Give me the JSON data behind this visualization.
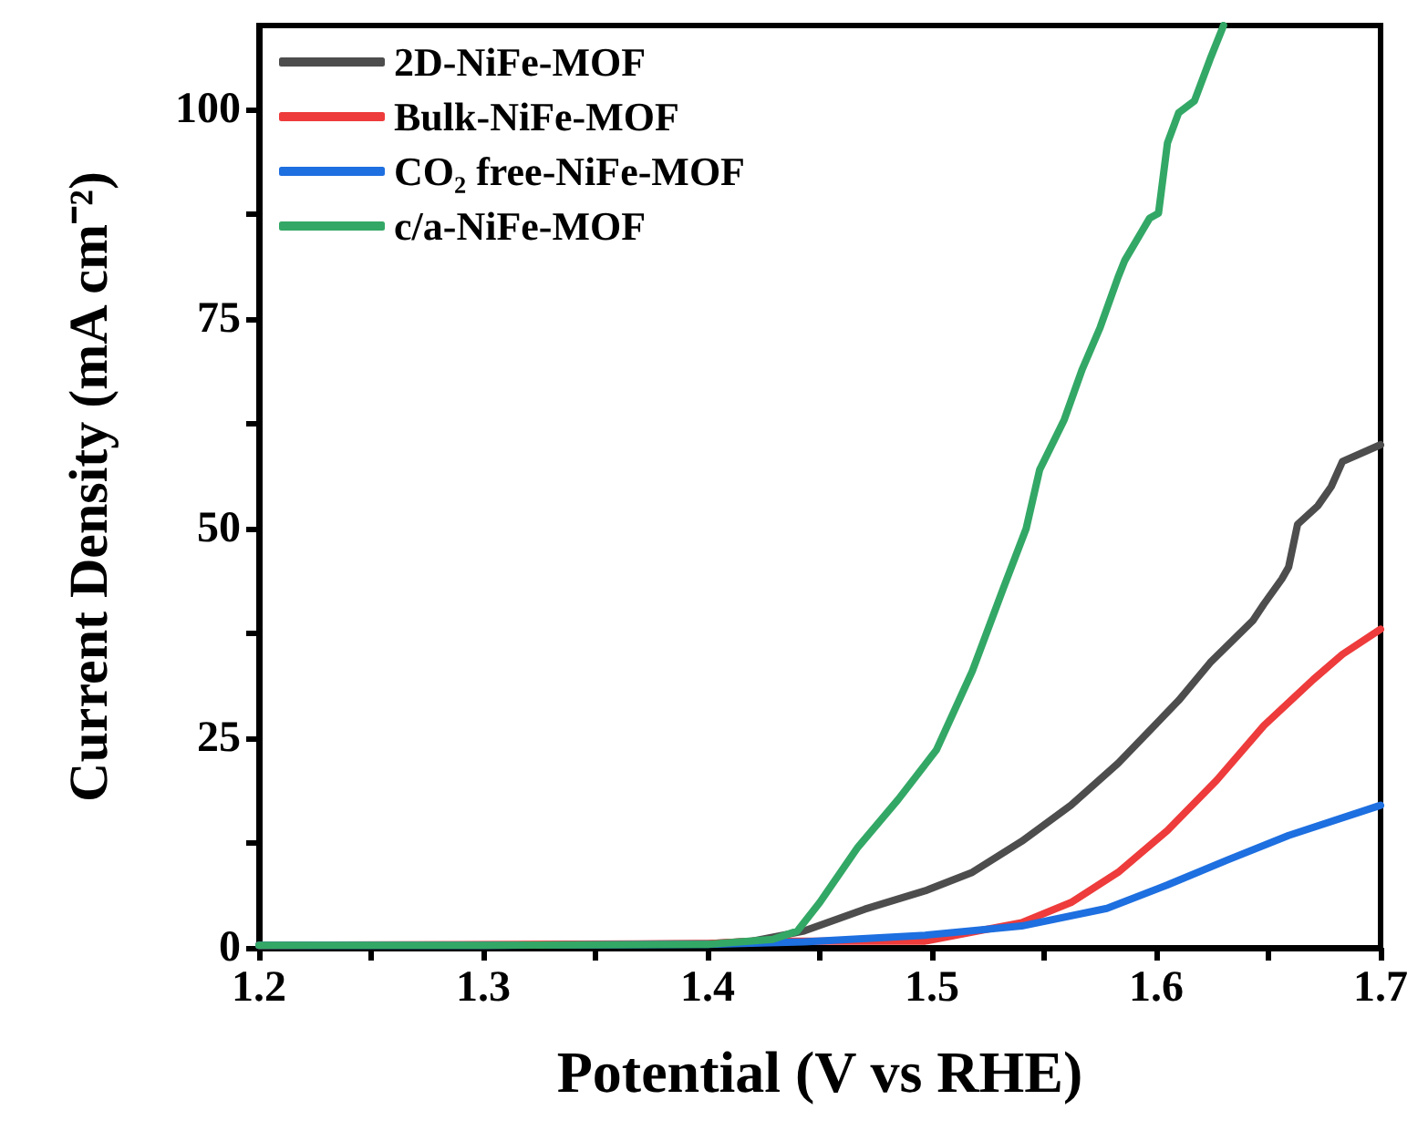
{
  "chart_data": {
    "type": "line",
    "xlabel": "Potential (V vs RHE)",
    "ylabel": "Current Density (mA cm⁻²)",
    "xlim": [
      1.2,
      1.7
    ],
    "ylim": [
      0,
      110
    ],
    "xticks": [
      1.2,
      {
        "value": 1.25,
        "label": null
      },
      1.3,
      {
        "value": 1.35,
        "label": null
      },
      1.4,
      {
        "value": 1.45,
        "label": null
      },
      1.5,
      {
        "value": 1.55,
        "label": null
      },
      1.6,
      {
        "value": 1.65,
        "label": null
      },
      1.7
    ],
    "yticks": [
      0,
      {
        "value": 12.5,
        "label": null
      },
      25,
      {
        "value": 37.5,
        "label": null
      },
      50,
      {
        "value": 62.5,
        "label": null
      },
      75,
      {
        "value": 87.5,
        "label": null
      },
      100
    ],
    "grid": false,
    "legend": "top left",
    "marker": "none",
    "line_style": "solid",
    "series": [
      {
        "name": "2D-NiFe-MOF",
        "color": "#4d4d4d",
        "x": [
          1.2,
          1.3,
          1.4,
          1.42,
          1.443,
          1.47,
          1.497,
          1.518,
          1.54,
          1.562,
          1.583,
          1.61,
          1.624,
          1.643,
          1.648,
          1.656,
          1.659,
          1.663,
          1.672,
          1.678,
          1.683,
          1.7
        ],
        "values": [
          0.3,
          0.3,
          0.5,
          0.8,
          2,
          4.6,
          6.8,
          9,
          12.7,
          17,
          22,
          29.5,
          34,
          39,
          41,
          44,
          45.4,
          50.5,
          52.7,
          55,
          58,
          60
        ]
      },
      {
        "name": "Bulk-NiFe-MOF",
        "color": "#ee3b3b",
        "x": [
          1.2,
          1.4,
          1.42,
          1.497,
          1.54,
          1.562,
          1.583,
          1.605,
          1.627,
          1.648,
          1.67,
          1.683,
          1.7
        ],
        "values": [
          0.3,
          0.5,
          0.8,
          0.8,
          3,
          5.4,
          9,
          14,
          20,
          26.5,
          32,
          35,
          38
        ]
      },
      {
        "name": "CO₂ free-NiFe-MOF",
        "color": "#1e6fe0",
        "x": [
          1.2,
          1.3,
          1.4,
          1.443,
          1.497,
          1.54,
          1.578,
          1.605,
          1.632,
          1.659,
          1.7
        ],
        "values": [
          0.3,
          0.3,
          0.4,
          0.7,
          1.5,
          2.6,
          4.7,
          7.5,
          10.5,
          13.4,
          17
        ]
      },
      {
        "name": "c/a-NiFe-MOF",
        "color": "#33a866",
        "x": [
          1.2,
          1.3,
          1.4,
          1.429,
          1.44,
          1.45,
          1.467,
          1.485,
          1.502,
          1.518,
          1.532,
          1.542,
          1.548,
          1.559,
          1.567,
          1.575,
          1.583,
          1.586,
          1.597,
          1.601,
          1.605,
          1.61,
          1.617,
          1.624,
          1.63
        ],
        "values": [
          0.3,
          0.3,
          0.4,
          1,
          2,
          5.4,
          12,
          17.7,
          23.6,
          33,
          43,
          50,
          57,
          63,
          69,
          74,
          80,
          82,
          87,
          87.6,
          96,
          99.6,
          101,
          106,
          110
        ]
      }
    ]
  }
}
